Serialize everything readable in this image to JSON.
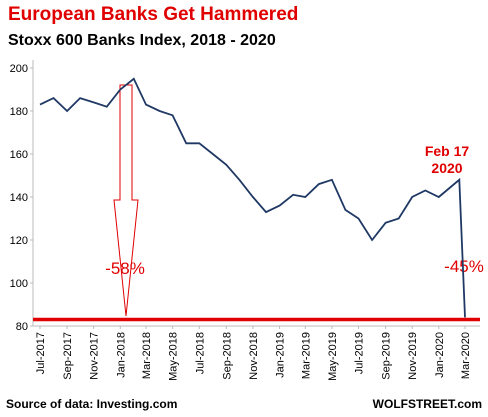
{
  "chart_data": {
    "type": "line",
    "title": "European  Banks Get Hammered",
    "subtitle": "Stoxx 600 Banks Index, 2018 - 2020",
    "source": "Source of data: Investing.com",
    "brand": "WOLFSTREET.com",
    "annotations": [
      "-58%",
      "-45%",
      "Feb 17",
      "2020"
    ],
    "x": [
      "2017-07",
      "2017-08",
      "2017-09",
      "2017-10",
      "2017-11",
      "2017-12",
      "2018-01",
      "2018-02",
      "2018-03",
      "2018-04",
      "2018-05",
      "2018-06",
      "2018-07",
      "2018-08",
      "2018-09",
      "2018-10",
      "2018-11",
      "2018-12",
      "2019-01",
      "2019-02",
      "2019-03",
      "2019-04",
      "2019-05",
      "2019-06",
      "2019-07",
      "2019-08",
      "2019-09",
      "2019-10",
      "2019-11",
      "2019-12",
      "2020-01",
      "2020-02-17",
      "2020-03"
    ],
    "series": [
      {
        "name": "Stoxx 600 Banks Index",
        "color": "#1f3864",
        "values": [
          183,
          186,
          180,
          186,
          184,
          182,
          190,
          195,
          183,
          180,
          178,
          165,
          165,
          160,
          155,
          148,
          140,
          133,
          136,
          141,
          140,
          146,
          148,
          134,
          130,
          120,
          128,
          130,
          140,
          143,
          140,
          148,
          84
        ]
      }
    ],
    "hline": 83,
    "hline_color": "#e00000",
    "ylim": [
      80,
      200
    ],
    "yticks": [
      80,
      100,
      120,
      140,
      160,
      180,
      200
    ],
    "xticks": [
      {
        "value": "2017-07",
        "label": "Jul-2017"
      },
      {
        "value": "2017-09",
        "label": "Sep-2017"
      },
      {
        "value": "2017-11",
        "label": "Nov-2017"
      },
      {
        "value": "2018-01",
        "label": "Jan-2018"
      },
      {
        "value": "2018-03",
        "label": "Mar-2018"
      },
      {
        "value": "2018-05",
        "label": "May-2018"
      },
      {
        "value": "2018-07",
        "label": "Jul-2018"
      },
      {
        "value": "2018-09",
        "label": "Sep-2018"
      },
      {
        "value": "2018-11",
        "label": "Nov-2018"
      },
      {
        "value": "2019-01",
        "label": "Jan-2019"
      },
      {
        "value": "2019-03",
        "label": "Mar-2019"
      },
      {
        "value": "2019-05",
        "label": "May-2019"
      },
      {
        "value": "2019-07",
        "label": "Jul-2019"
      },
      {
        "value": "2019-09",
        "label": "Sep-2019"
      },
      {
        "value": "2019-11",
        "label": "Nov-2019"
      },
      {
        "value": "2020-01",
        "label": "Jan-2020"
      },
      {
        "value": "2020-03",
        "label": "Mar-2020"
      }
    ],
    "grid": false
  }
}
